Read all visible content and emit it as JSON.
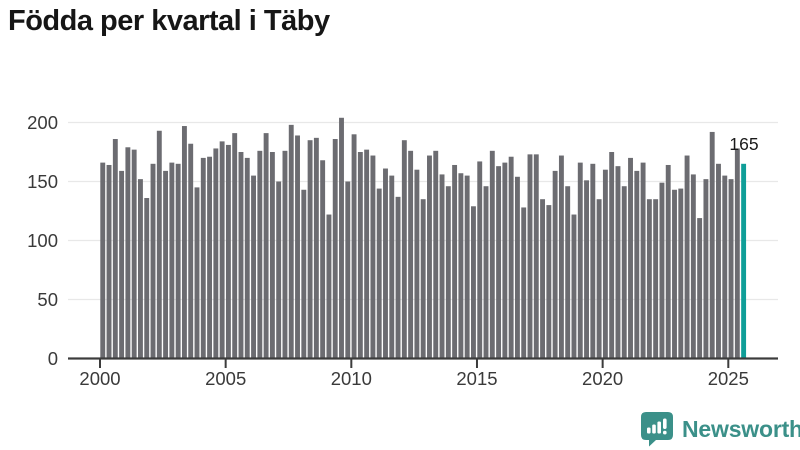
{
  "title": "Födda per kvartal i Täby",
  "chart_data": {
    "type": "bar",
    "title": "Födda per kvartal i Täby",
    "xlabel": "",
    "ylabel": "",
    "x_start": "2000 Q1",
    "x_end": "2025 Q3",
    "x_tick_labels": [
      "2000",
      "2005",
      "2010",
      "2015",
      "2020",
      "2025"
    ],
    "quarters_per_tick": 20,
    "y_ticks": [
      0,
      50,
      100,
      150,
      200
    ],
    "ylim": [
      0,
      210
    ],
    "grid": true,
    "values": [
      166,
      164,
      186,
      159,
      179,
      177,
      152,
      136,
      165,
      193,
      159,
      166,
      165,
      197,
      182,
      145,
      170,
      171,
      178,
      184,
      181,
      191,
      175,
      170,
      155,
      176,
      191,
      175,
      150,
      176,
      198,
      189,
      143,
      185,
      187,
      168,
      122,
      186,
      204,
      150,
      190,
      175,
      177,
      172,
      144,
      161,
      155,
      137,
      185,
      176,
      160,
      135,
      172,
      176,
      156,
      146,
      164,
      157,
      155,
      129,
      167,
      146,
      176,
      163,
      166,
      171,
      154,
      128,
      173,
      173,
      135,
      130,
      159,
      172,
      146,
      122,
      166,
      151,
      165,
      135,
      160,
      175,
      163,
      146,
      170,
      159,
      166,
      135,
      135,
      149,
      164,
      143,
      144,
      172,
      156,
      119,
      152,
      192,
      165,
      155,
      152,
      178,
      165
    ],
    "highlight_last": true,
    "last_value_label": "165",
    "colors": {
      "bar": "#6c6c71",
      "highlight": "#0f9e98",
      "grid": "#e8e8e8",
      "axis": "#3c3c3c",
      "text": "#3a3a3a"
    }
  },
  "logo": {
    "text": "Newsworthy",
    "icon": "newsworthy-speech-bubble-chart-icon",
    "color": "#3b9089"
  }
}
